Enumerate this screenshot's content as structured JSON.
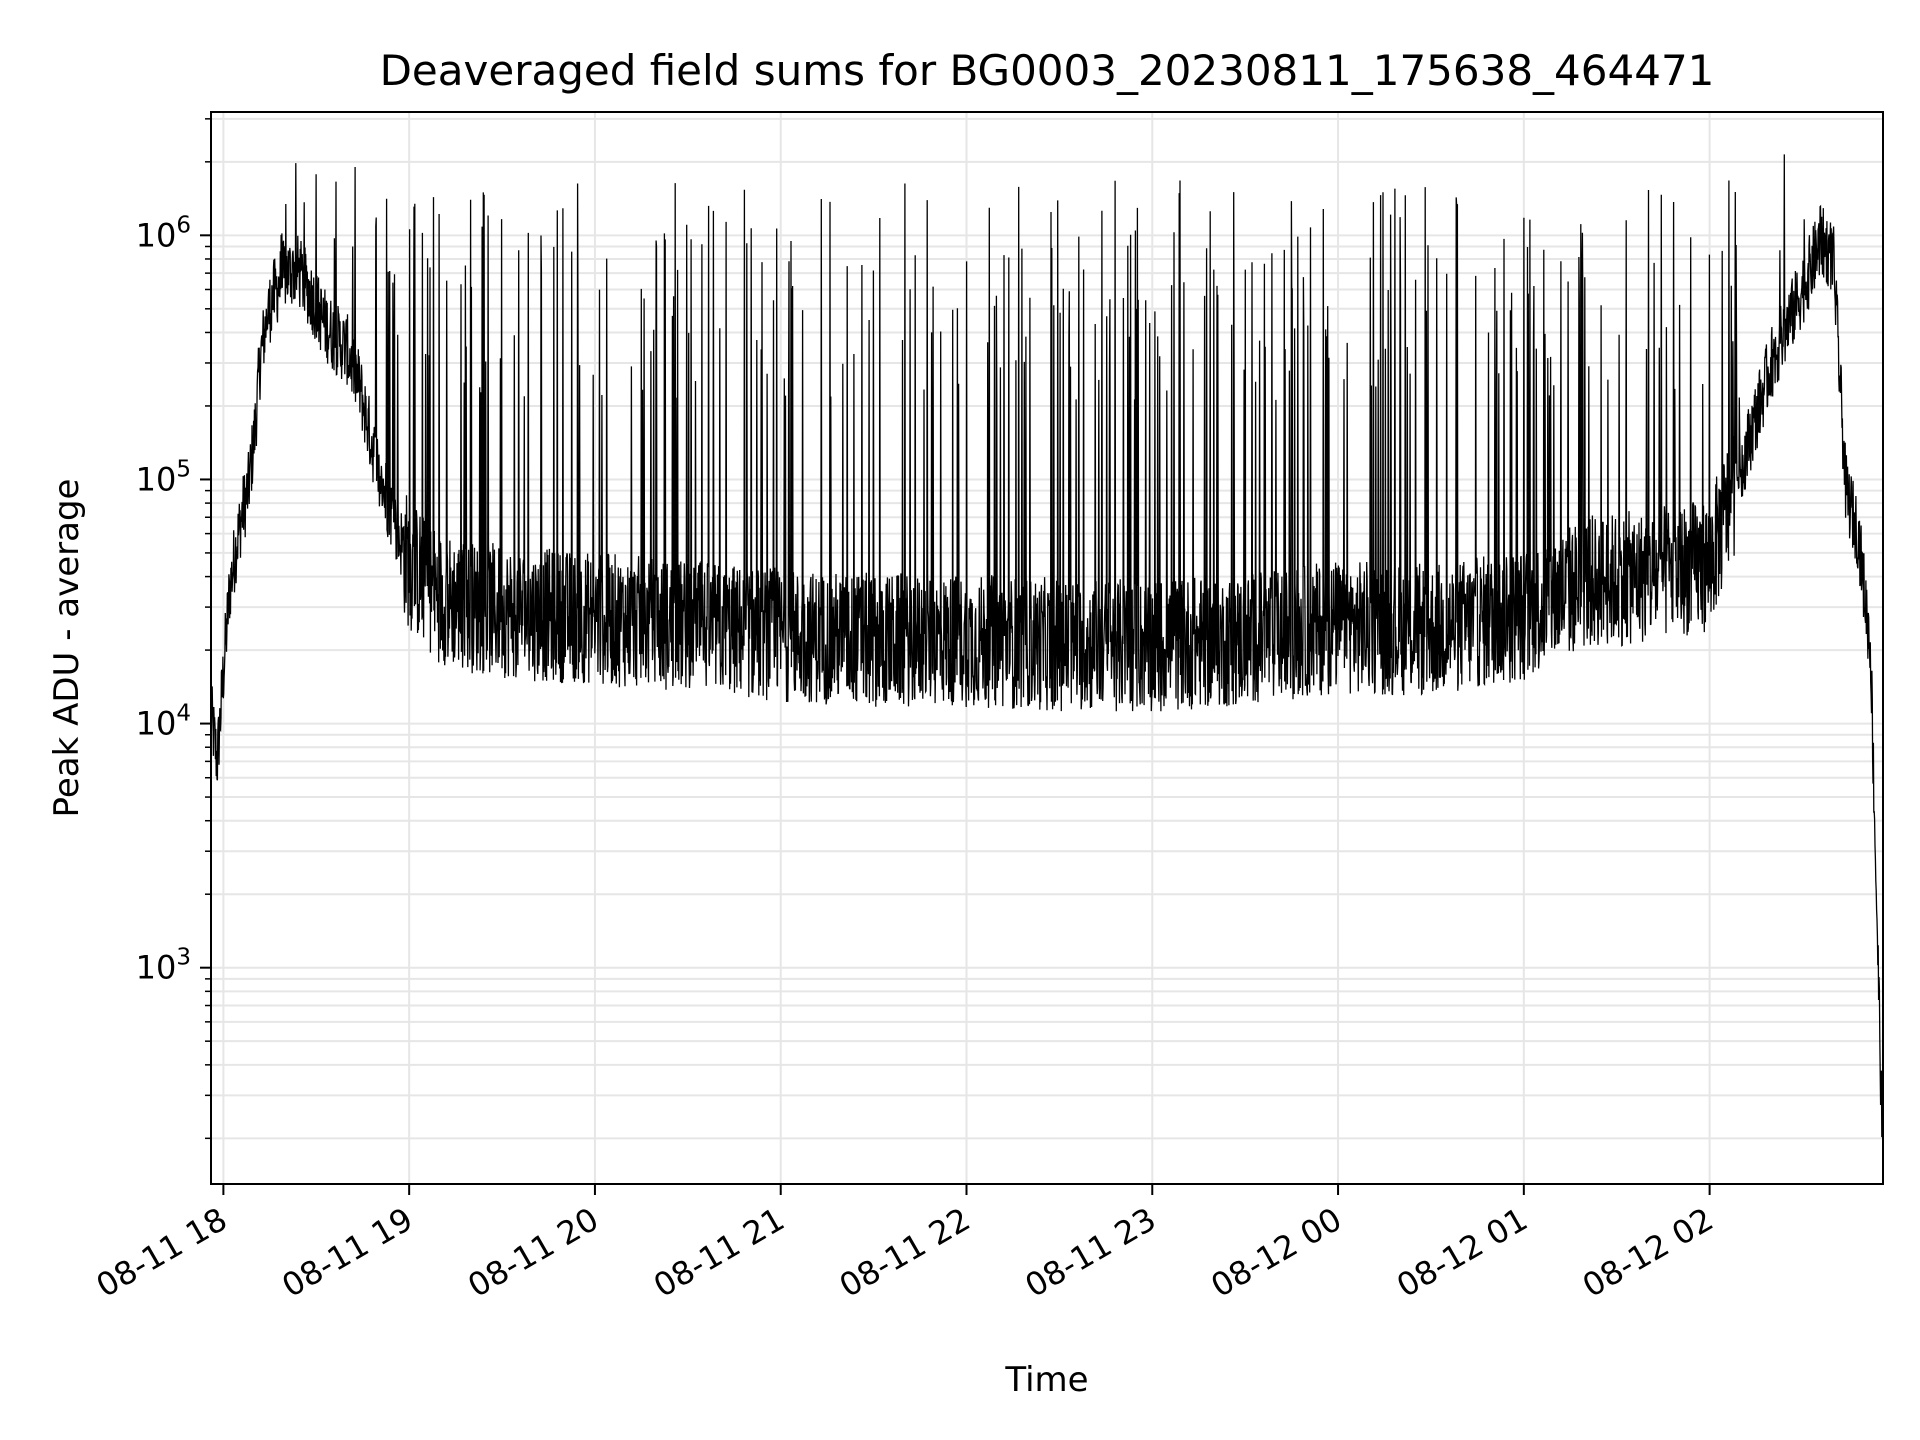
{
  "chart_data": {
    "type": "line",
    "title": "Deaveraged field sums for BG0003_20230811_175638_464471",
    "xlabel": "Time",
    "ylabel": "Peak ADU - average",
    "yscale": "log",
    "ylim": [
      130,
      3200000
    ],
    "xlim": [
      "2023-08-11 17:56",
      "2023-08-12 02:56"
    ],
    "x_ticks": [
      "08-11 18",
      "08-11 19",
      "08-11 20",
      "08-11 21",
      "08-11 22",
      "08-11 23",
      "08-12 00",
      "08-12 01",
      "08-12 02"
    ],
    "y_ticks": [
      {
        "value": 1000,
        "base": "10",
        "exp": "3"
      },
      {
        "value": 10000,
        "base": "10",
        "exp": "4"
      },
      {
        "value": 100000,
        "base": "10",
        "exp": "5"
      },
      {
        "value": 1000000,
        "base": "10",
        "exp": "6"
      }
    ],
    "grid": true,
    "line_color": "#000000",
    "grid_color": "#e6e6e6",
    "series": [
      {
        "values": [
          [
            "2023-08-11 17:56",
            11000
          ],
          [
            "2023-08-11 17:58",
            7000
          ],
          [
            "2023-08-11 18:00",
            16000
          ],
          [
            "2023-08-11 18:02",
            35000
          ],
          [
            "2023-08-11 18:04",
            52000
          ],
          [
            "2023-08-11 18:06",
            72000
          ],
          [
            "2023-08-11 18:08",
            90000
          ],
          [
            "2023-08-11 18:10",
            150000
          ],
          [
            "2023-08-11 18:12",
            320000
          ],
          [
            "2023-08-11 18:14",
            450000
          ],
          [
            "2023-08-11 18:16",
            560000
          ],
          [
            "2023-08-11 18:20",
            700000
          ],
          [
            "2023-08-11 18:24",
            720000
          ],
          [
            "2023-08-11 18:28",
            580000
          ],
          [
            "2023-08-11 18:32",
            450000
          ],
          [
            "2023-08-11 18:36",
            380000
          ],
          [
            "2023-08-11 18:40",
            340000
          ],
          [
            "2023-08-11 18:44",
            240000
          ],
          [
            "2023-08-11 18:48",
            140000
          ],
          [
            "2023-08-11 18:52",
            90000
          ],
          [
            "2023-08-11 18:56",
            62000
          ],
          [
            "2023-08-11 19:00",
            45000
          ],
          [
            "2023-08-11 19:10",
            33000
          ],
          [
            "2023-08-11 19:20",
            30000
          ],
          [
            "2023-08-11 19:40",
            28000
          ],
          [
            "2023-08-11 20:00",
            27000
          ],
          [
            "2023-08-11 20:30",
            25000
          ],
          [
            "2023-08-11 21:00",
            23000
          ],
          [
            "2023-08-11 21:30",
            22000
          ],
          [
            "2023-08-11 22:00",
            22000
          ],
          [
            "2023-08-11 22:30",
            21000
          ],
          [
            "2023-08-11 23:00",
            21000
          ],
          [
            "2023-08-11 23:30",
            22000
          ],
          [
            "2023-08-12 00:00",
            25000
          ],
          [
            "2023-08-12 00:30",
            24000
          ],
          [
            "2023-08-12 01:00",
            28000
          ],
          [
            "2023-08-12 01:20",
            38000
          ],
          [
            "2023-08-12 01:40",
            40000
          ],
          [
            "2023-08-12 02:00",
            45000
          ],
          [
            "2023-08-12 02:10",
            110000
          ],
          [
            "2023-08-12 02:20",
            300000
          ],
          [
            "2023-08-12 02:30",
            600000
          ],
          [
            "2023-08-12 02:36",
            950000
          ],
          [
            "2023-08-12 02:40",
            800000
          ],
          [
            "2023-08-12 02:44",
            90000
          ],
          [
            "2023-08-12 02:48",
            60000
          ],
          [
            "2023-08-12 02:52",
            20000
          ],
          [
            "2023-08-12 02:56",
            150
          ]
        ],
        "spike_peak": 1000000
      }
    ]
  }
}
